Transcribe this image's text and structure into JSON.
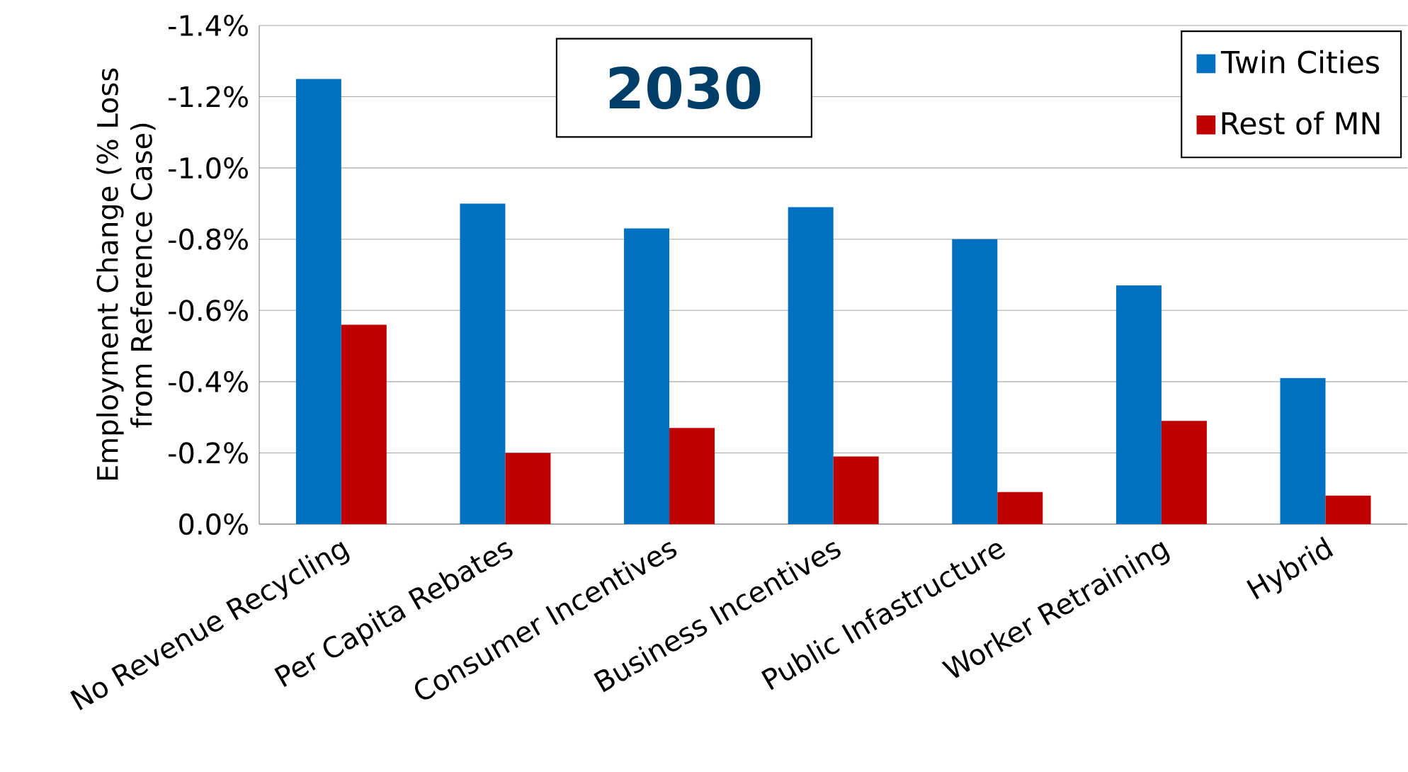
{
  "chart_data": {
    "type": "bar",
    "title": "2030",
    "ylabel": "Employment Change (% Loss from Reference Case)",
    "categories": [
      "No Revenue Recycling",
      "Per Capita Rebates",
      "Consumer Incentives",
      "Business Incentives",
      "Public Infastructure",
      "Worker Retraining",
      "Hybrid"
    ],
    "series": [
      {
        "name": "Twin Cities",
        "color": "#0070c0",
        "values": [
          -1.25,
          -0.9,
          -0.83,
          -0.89,
          -0.8,
          -0.67,
          -0.41
        ]
      },
      {
        "name": "Rest of MN",
        "color": "#c00000",
        "values": [
          -0.56,
          -0.2,
          -0.27,
          -0.19,
          -0.09,
          -0.29,
          -0.08
        ]
      }
    ],
    "ylim": [
      0,
      -1.4
    ],
    "yticks": [
      {
        "value": 0,
        "label": "0.0%"
      },
      {
        "value": -0.2,
        "label": "-0.2%"
      },
      {
        "value": -0.4,
        "label": "-0.4%"
      },
      {
        "value": -0.6,
        "label": "-0.6%"
      },
      {
        "value": -0.8,
        "label": "-0.8%"
      },
      {
        "value": -1.0,
        "label": "-1.0%"
      },
      {
        "value": -1.2,
        "label": "-1.2%"
      },
      {
        "value": -1.4,
        "label": "-1.4%"
      }
    ],
    "grid": "y",
    "legend": "top right"
  }
}
